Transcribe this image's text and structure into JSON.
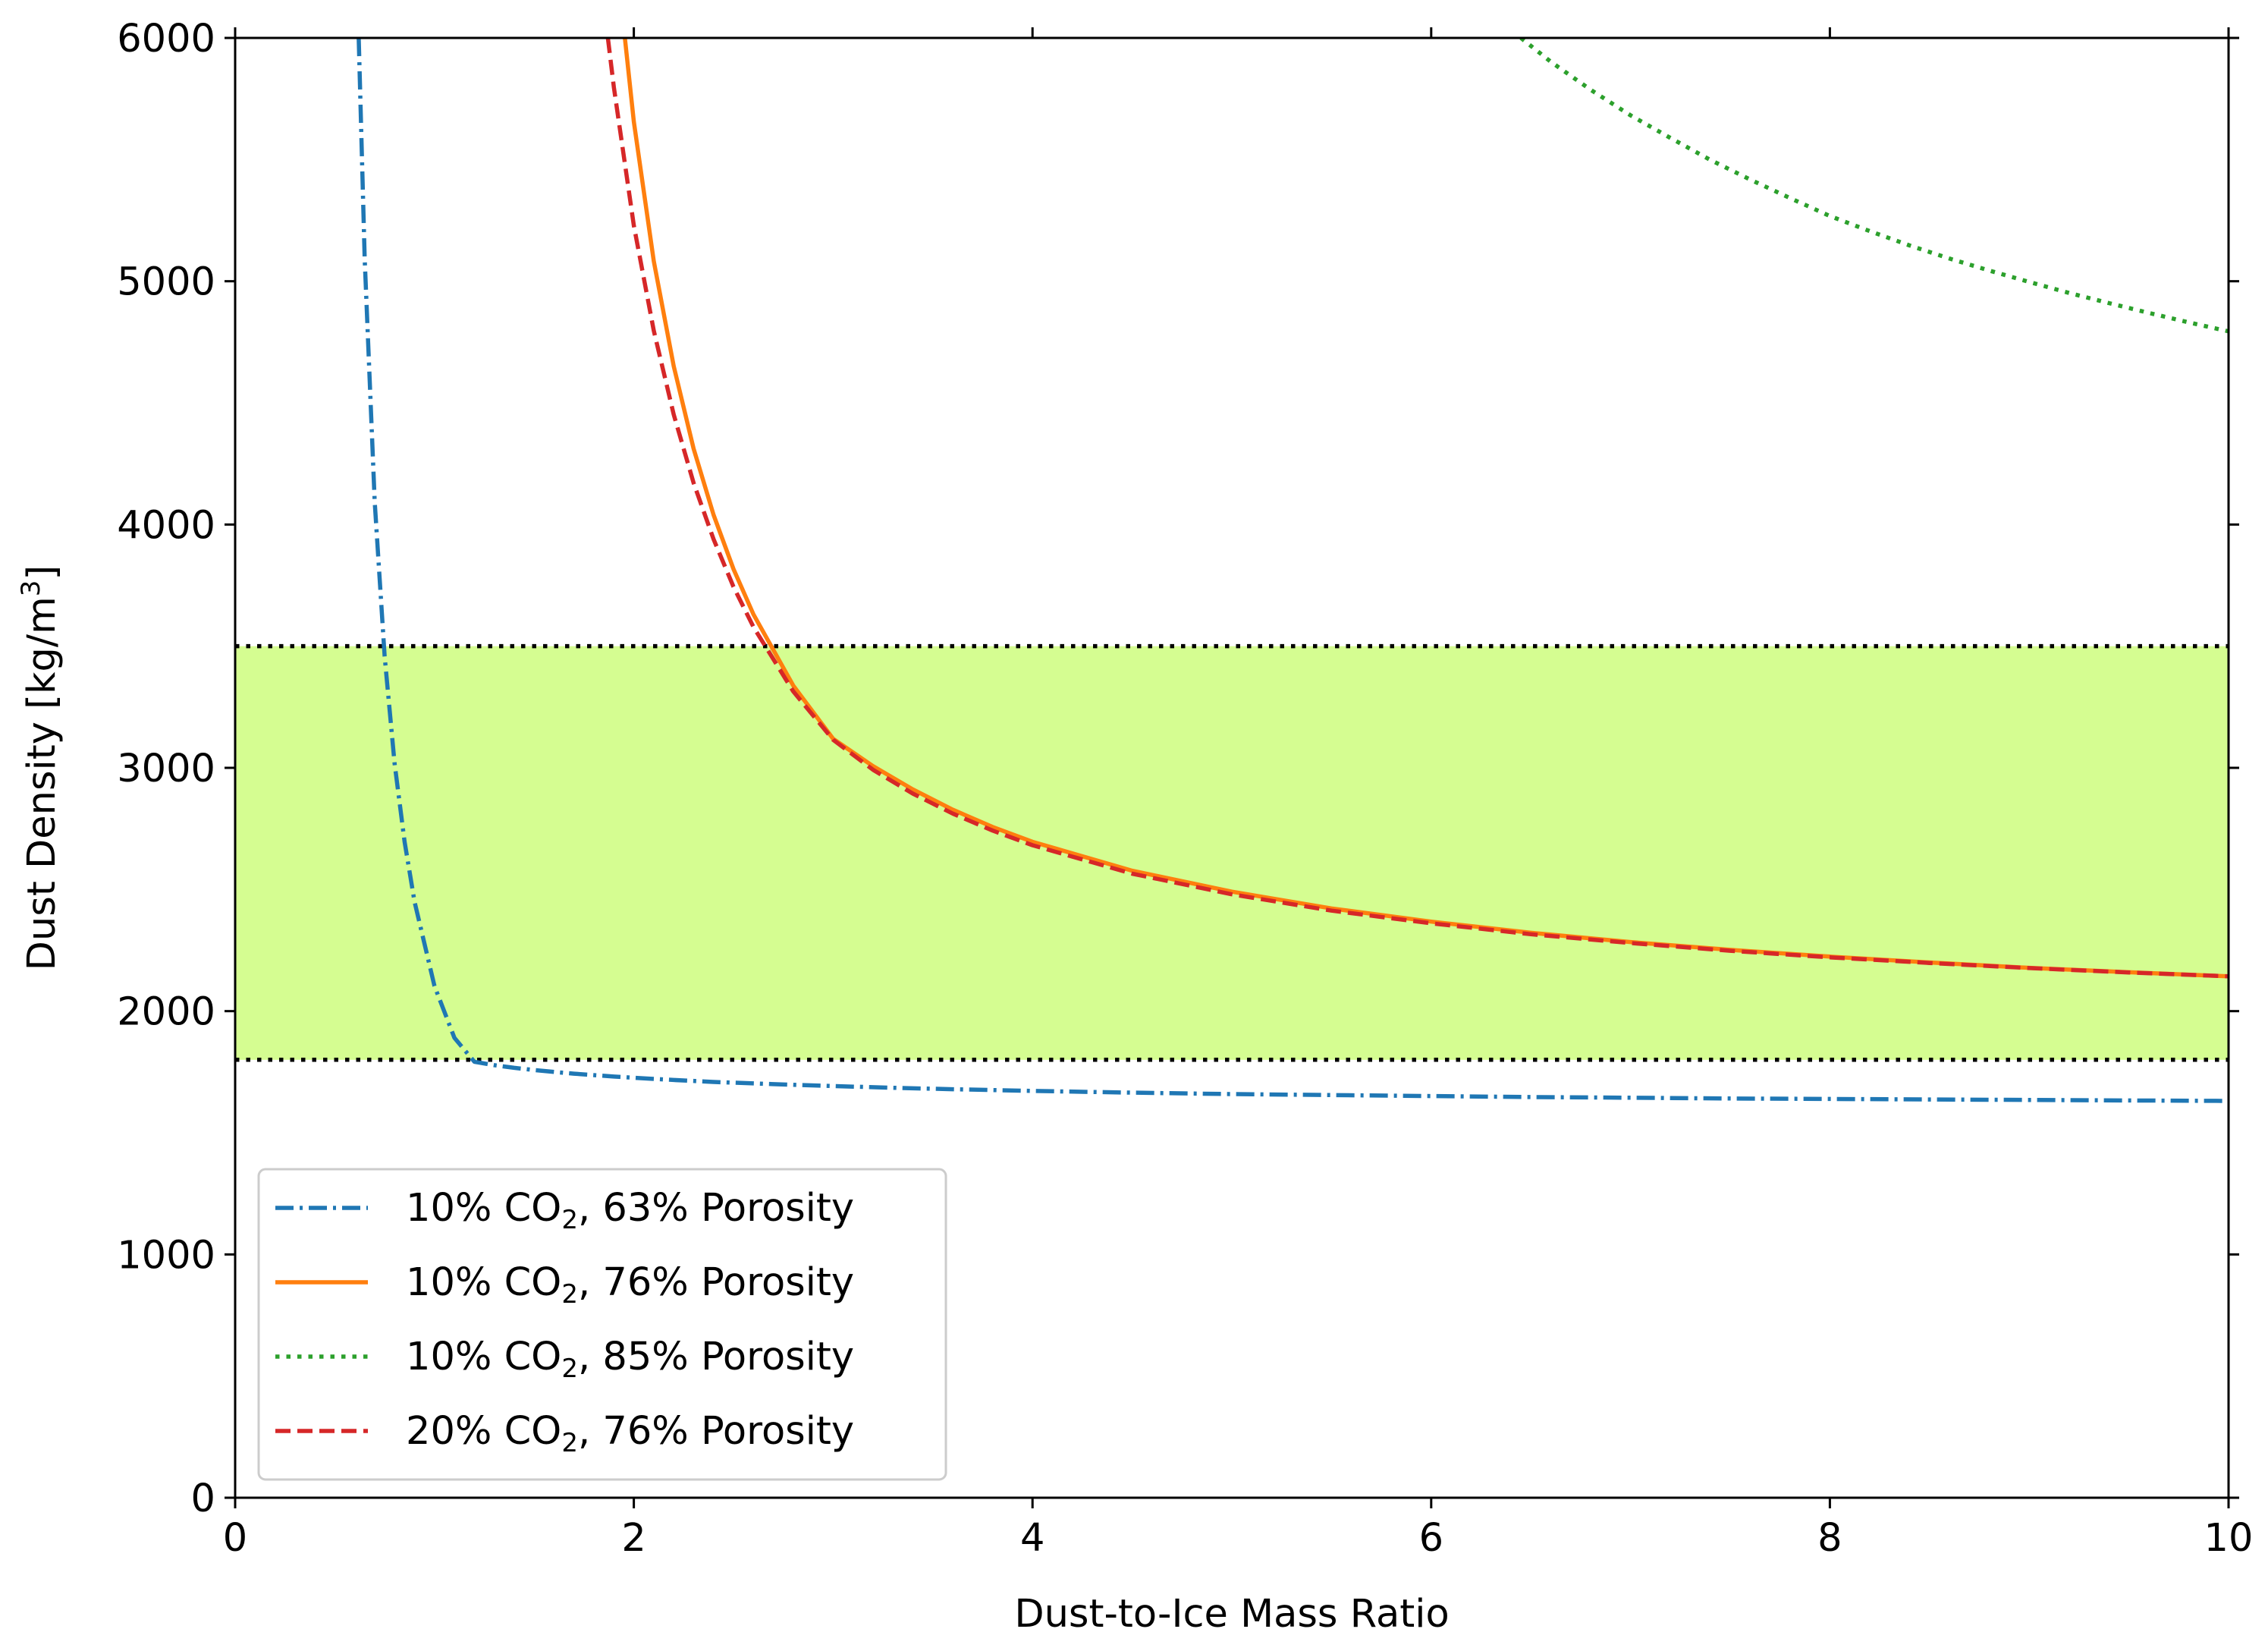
{
  "chart_data": {
    "type": "line",
    "title": "",
    "xlabel": "Dust-to-Ice Mass Ratio",
    "ylabel": {
      "main": "Dust Density [kg/m",
      "sup": "3",
      "tail": "]"
    },
    "xlim": [
      0,
      10
    ],
    "ylim": [
      0,
      6000
    ],
    "xticks": [
      0,
      2,
      4,
      6,
      8,
      10
    ],
    "xtick_labels": [
      "0",
      "2",
      "4",
      "6",
      "8",
      "10"
    ],
    "yticks": [
      0,
      1000,
      2000,
      3000,
      4000,
      5000,
      6000
    ],
    "ytick_labels": [
      "0",
      "1000",
      "2000",
      "3000",
      "4000",
      "5000",
      "6000"
    ],
    "grid": false,
    "legend_position": "bottom-left",
    "shaded_band": {
      "y_min": 1800,
      "y_max": 3500,
      "color": "#d5fd91",
      "boundary_style": "dotted",
      "boundary_color": "#000000"
    },
    "series": [
      {
        "label_prefix": "10% CO",
        "label_sub": "2",
        "label_suffix": ", 63% Porosity",
        "color": "#1f77b4",
        "style": "dashdot",
        "x": [
          0.62,
          0.65,
          0.7,
          0.75,
          0.8,
          0.85,
          0.9,
          1.0,
          1.1,
          1.2,
          1.3,
          1.4,
          1.5,
          1.6,
          1.7,
          1.8,
          1.9,
          2.0,
          2.2,
          2.4,
          2.6,
          2.8,
          3.0,
          3.3,
          3.6,
          4.0,
          4.5,
          5.0,
          5.5,
          6.0,
          6.5,
          7.0,
          7.5,
          8.0,
          8.5,
          9.0,
          9.5,
          10.0
        ],
        "y": [
          6000,
          5091,
          4093,
          3458,
          3018,
          2696,
          2450,
          2103,
          1890,
          1792,
          1778,
          1767,
          1758,
          1750,
          1743,
          1737,
          1731,
          1726,
          1717,
          1709,
          1703,
          1697,
          1692,
          1685,
          1679,
          1672,
          1665,
          1659,
          1655,
          1651,
          1647,
          1644,
          1641,
          1639,
          1637,
          1635,
          1633,
          1631
        ]
      },
      {
        "label_prefix": "10% CO",
        "label_sub": "2",
        "label_suffix": ", 76% Porosity",
        "color": "#ff7f0e",
        "style": "solid",
        "x": [
          1.955,
          2.0,
          2.1,
          2.2,
          2.3,
          2.4,
          2.5,
          2.6,
          2.8,
          3.0,
          3.2,
          3.4,
          3.6,
          3.8,
          4.0,
          4.5,
          5.0,
          5.5,
          6.0,
          6.5,
          7.0,
          7.5,
          8.0,
          8.5,
          9.0,
          9.5,
          10.0
        ],
        "y": [
          6000,
          5656,
          5083,
          4651,
          4312,
          4040,
          3817,
          3631,
          3338,
          3119,
          3007,
          2911,
          2828,
          2757,
          2696,
          2577,
          2491,
          2422,
          2368,
          2322,
          2284,
          2252,
          2224,
          2200,
          2178,
          2160,
          2143
        ]
      },
      {
        "label_prefix": "10% CO",
        "label_sub": "2",
        "label_suffix": ", 85% Porosity",
        "color": "#2ca02c",
        "style": "dotted",
        "x": [
          6.45,
          6.6,
          6.8,
          7.0,
          7.2,
          7.4,
          7.6,
          7.8,
          8.0,
          8.2,
          8.4,
          8.6,
          8.8,
          9.0,
          9.2,
          9.4,
          9.6,
          9.8,
          10.0
        ],
        "y": [
          6000,
          5902,
          5787,
          5682,
          5589,
          5499,
          5418,
          5342,
          5268,
          5206,
          5147,
          5093,
          5044,
          4997,
          4952,
          4910,
          4870,
          4831,
          4794
        ]
      },
      {
        "label_prefix": "20% CO",
        "label_sub": "2",
        "label_suffix": ", 76% Porosity",
        "color": "#d62728",
        "style": "dashed",
        "x": [
          1.87,
          1.9,
          2.0,
          2.1,
          2.2,
          2.3,
          2.4,
          2.5,
          2.6,
          2.8,
          3.0,
          3.2,
          3.4,
          3.6,
          3.8,
          4.0,
          4.5,
          5.0,
          5.5,
          6.0,
          6.5,
          7.0,
          7.5,
          8.0,
          8.5,
          9.0,
          9.5,
          10.0
        ],
        "y": [
          6000,
          5797,
          5229,
          4797,
          4452,
          4171,
          3940,
          3744,
          3579,
          3314,
          3115,
          2992,
          2894,
          2812,
          2742,
          2682,
          2565,
          2480,
          2413,
          2361,
          2316,
          2280,
          2248,
          2221,
          2198,
          2177,
          2159,
          2143
        ]
      }
    ]
  }
}
